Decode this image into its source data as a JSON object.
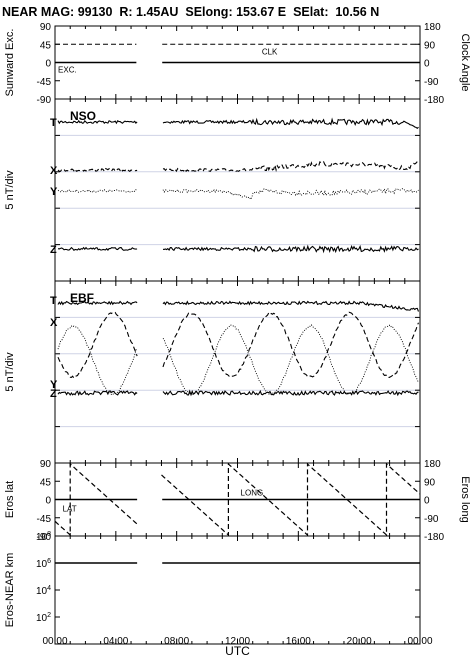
{
  "header": {
    "title": "NEAR MAG: 99130  R: 1.45AU  SElong: 153.67 E  SElat:  10.56 N"
  },
  "x_axis": {
    "label": "UTC",
    "ticks": [
      "00:00",
      "04:00",
      "08:00",
      "12:00",
      "16:00",
      "20:00",
      "00:00"
    ],
    "range_hours": [
      0,
      24
    ]
  },
  "gap_hours": [
    5.4,
    7.0
  ],
  "chart_data": [
    {
      "name": "excursion-clock",
      "type": "line",
      "ylabel_left": "Sunward Exc.",
      "ylabel_right": "Clock Angle",
      "yticks_left": [
        "90",
        "45",
        "0",
        "-45",
        "-90"
      ],
      "yticks_right": [
        "180",
        "90",
        "0",
        "-90",
        "-180"
      ],
      "ylim_left": [
        -90,
        90
      ],
      "ylim_right": [
        -180,
        180
      ],
      "series": [
        {
          "name": "CLK",
          "style": "dashed",
          "approx_value": 45
        },
        {
          "name": "EXC.",
          "style": "solid",
          "approx_value": 0
        }
      ]
    },
    {
      "name": "nso-components",
      "type": "line",
      "panel_label": "NSO",
      "ylabel": "5 nT/div",
      "series": [
        {
          "name": "T",
          "style": "solid"
        },
        {
          "name": "X",
          "style": "dashed"
        },
        {
          "name": "Y",
          "style": "dotted"
        },
        {
          "name": "Z",
          "style": "solid"
        }
      ]
    },
    {
      "name": "ebf-components",
      "type": "line",
      "panel_label": "EBF",
      "ylabel": "5 nT/div",
      "series": [
        {
          "name": "T",
          "style": "solid"
        },
        {
          "name": "X",
          "style": "dashed"
        },
        {
          "name": "Y",
          "style": "dotted"
        },
        {
          "name": "Z",
          "style": "solid"
        }
      ]
    },
    {
      "name": "eros-lat-long",
      "type": "line",
      "ylabel_left": "Eros lat",
      "ylabel_right": "Eros long",
      "yticks_left": [
        "90",
        "45",
        "0",
        "-45",
        "-90"
      ],
      "yticks_right": [
        "180",
        "90",
        "0",
        "-90",
        "-180"
      ],
      "ylim_left": [
        -90,
        90
      ],
      "ylim_right": [
        -180,
        180
      ],
      "series": [
        {
          "name": "LAT",
          "style": "solid",
          "approx_value": 0
        },
        {
          "name": "LONG",
          "style": "dashed",
          "period_hours": 5.2
        }
      ]
    },
    {
      "name": "eros-near-distance",
      "type": "line",
      "ylabel": "Eros-NEAR km",
      "scale": "log",
      "yticks": [
        "10^8",
        "10^6",
        "10^4",
        "10^2"
      ],
      "ylim": [
        1,
        100000000
      ],
      "series": [
        {
          "name": "distance",
          "style": "solid",
          "approx_value": 1000000
        }
      ]
    }
  ]
}
